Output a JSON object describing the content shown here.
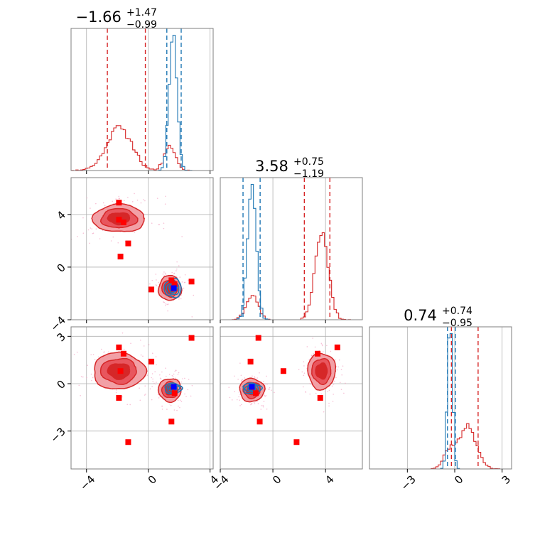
{
  "chart_data": {
    "type": "corner",
    "grid": true,
    "colors": {
      "red": "#d62728",
      "blue": "#1f77b4",
      "red_marker": "#ff0000",
      "blue_marker": "#0000ff"
    },
    "parameters": [
      {
        "title_main": "−1.66",
        "title_sup": "+1.47",
        "title_sub": "−0.99",
        "range": [
          -5,
          4.2
        ],
        "ticks": [
          -4,
          0,
          4
        ],
        "tick_labels": [
          "−4",
          "0",
          "4"
        ],
        "quantiles_red": [
          -2.65,
          -0.19
        ],
        "quantiles_blue": [
          1.2,
          2.13
        ]
      },
      {
        "title_main": "3.58",
        "title_sup": "+0.75",
        "title_sub": "−1.19",
        "range": [
          -4,
          6.8
        ],
        "ticks": [
          -4,
          0,
          4
        ],
        "tick_labels": [
          "−4",
          "0",
          "4"
        ],
        "quantiles_red": [
          2.39,
          4.33
        ],
        "quantiles_blue": [
          -2.27,
          -0.97
        ]
      },
      {
        "title_main": "0.74",
        "title_sup": "+0.74",
        "title_sub": "−0.95",
        "range": [
          -5.4,
          3.6
        ],
        "ticks": [
          -3,
          0,
          3
        ],
        "tick_labels": [
          "−3",
          "0",
          "3"
        ],
        "quantiles_red": [
          -0.21,
          1.48
        ],
        "quantiles_blue": [
          -0.46,
          0.04
        ]
      }
    ],
    "red_modes": [
      {
        "center": [
          -1.9,
          3.7,
          0.8
        ],
        "sigma": [
          0.8,
          0.5,
          0.55
        ]
      },
      {
        "center": [
          1.4,
          -1.6,
          -0.4
        ],
        "sigma": [
          0.35,
          0.45,
          0.35
        ]
      }
    ],
    "blue_mode": {
      "center": [
        1.6,
        -1.6,
        -0.3
      ],
      "sigma": [
        0.25,
        0.32,
        0.15
      ]
    },
    "red_markers": [
      [
        -1.9,
        4.9,
        2.3
      ],
      [
        -1.6,
        3.4,
        1.9
      ],
      [
        -1.3,
        1.8,
        -3.7
      ],
      [
        -1.8,
        0.8,
        0.8
      ],
      [
        0.2,
        -1.7,
        1.4
      ],
      [
        1.5,
        -1.0,
        -2.4
      ],
      [
        1.7,
        -1.3,
        -0.6
      ],
      [
        2.8,
        -1.1,
        2.9
      ],
      [
        -1.9,
        3.6,
        -0.9
      ]
    ],
    "blue_marker": [
      1.65,
      -1.6,
      -0.2
    ]
  }
}
